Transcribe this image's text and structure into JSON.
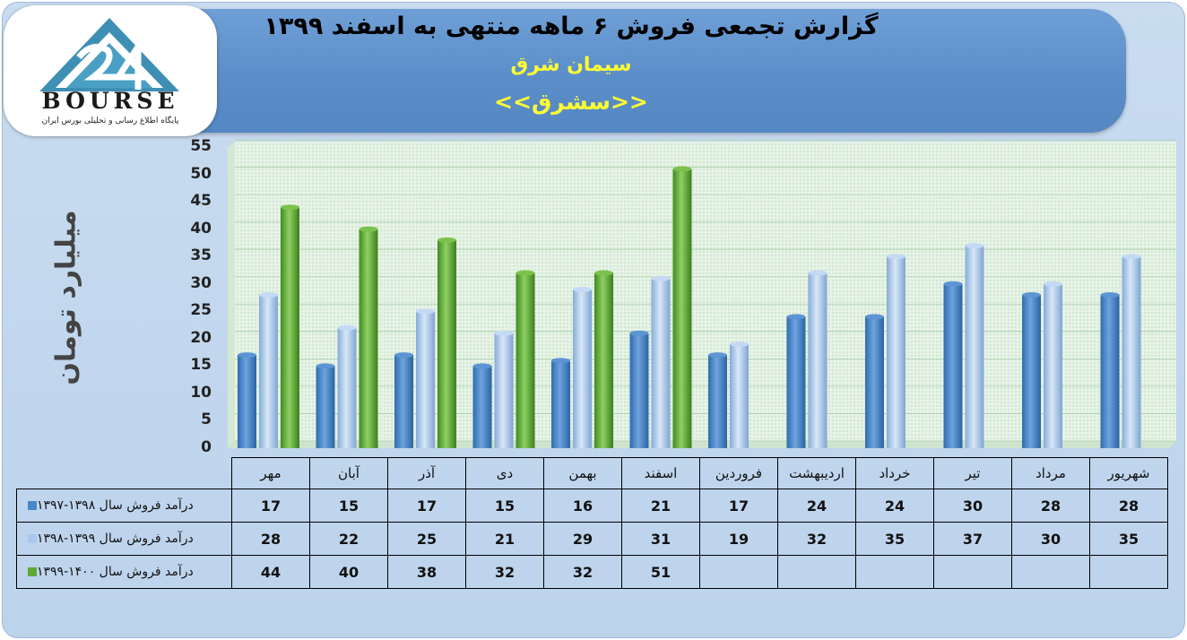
{
  "header": {
    "title": "گزارش تجمعی فروش ۶ ماهه منتهی به اسفند ۱۳۹۹",
    "company": "سیمان شرق",
    "symbol": "<<سشرق>>"
  },
  "logo": {
    "word": "BOURSE",
    "subtitle": "پایگاه اطلاع رسانی و تحلیلی بورس ایران"
  },
  "colors": {
    "series1": "#4a86c8",
    "series2": "#a9c8ec",
    "series3": "#5fa838"
  },
  "chart_data": {
    "type": "bar",
    "ylabel": "میلیارد تومان",
    "ylim": [
      0,
      55
    ],
    "yticks": [
      0,
      5,
      10,
      15,
      20,
      25,
      30,
      35,
      40,
      45,
      50,
      55
    ],
    "grid": true,
    "categories": [
      "مهر",
      "آبان",
      "آذر",
      "دی",
      "بهمن",
      "اسفند",
      "فروردین",
      "اردیبهشت",
      "خرداد",
      "تیر",
      "مرداد",
      "شهریور"
    ],
    "series": [
      {
        "name": "درآمد فروش سال ۱۳۹۸-۱۳۹۷",
        "values": [
          17,
          15,
          17,
          15,
          16,
          21,
          17,
          24,
          24,
          30,
          28,
          28
        ]
      },
      {
        "name": "درآمد فروش سال ۱۳۹۹-۱۳۹۸",
        "values": [
          28,
          22,
          25,
          21,
          29,
          31,
          19,
          32,
          35,
          37,
          30,
          35
        ]
      },
      {
        "name": "درآمد فروش سال ۱۴۰۰-۱۳۹۹",
        "values": [
          44,
          40,
          38,
          32,
          32,
          51,
          null,
          null,
          null,
          null,
          null,
          null
        ]
      }
    ]
  }
}
